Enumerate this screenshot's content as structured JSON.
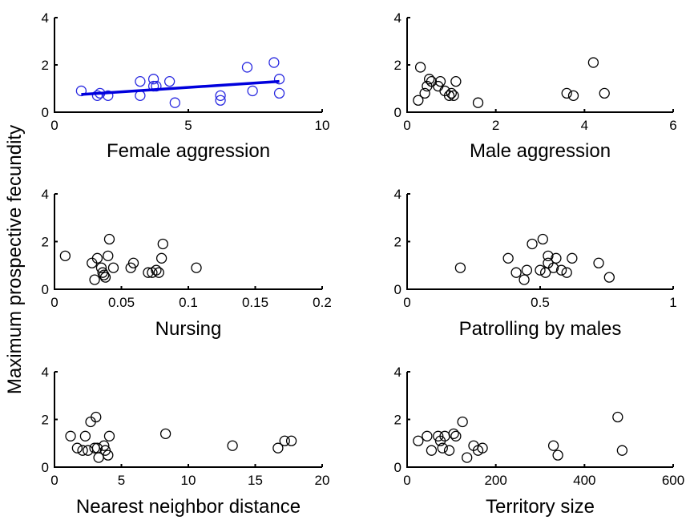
{
  "ylabel": "Maximum prospective fecundity",
  "colors": {
    "trend": "#0000dd",
    "trend_points": "#2a2ae0",
    "points": "#000000"
  },
  "chart_data": [
    {
      "type": "scatter",
      "xlabel": "Female aggression",
      "xlim": [
        0,
        10
      ],
      "ylim": [
        0,
        4
      ],
      "xticks": [
        "0",
        "5",
        "10"
      ],
      "yticks": [
        "0",
        "2",
        "4"
      ],
      "x": [
        1.0,
        1.6,
        1.7,
        2.0,
        3.2,
        3.2,
        3.7,
        3.7,
        3.8,
        4.3,
        4.5,
        6.2,
        6.2,
        7.2,
        7.4,
        8.2,
        8.4,
        8.4
      ],
      "y": [
        0.9,
        0.7,
        0.8,
        0.7,
        0.7,
        1.3,
        1.1,
        1.4,
        1.1,
        1.3,
        0.4,
        0.7,
        0.5,
        1.9,
        0.9,
        2.1,
        1.4,
        0.8
      ],
      "trendline": {
        "x": [
          1.0,
          8.4
        ],
        "y": [
          0.75,
          1.3
        ]
      }
    },
    {
      "type": "scatter",
      "xlabel": "Male aggression",
      "xlim": [
        0,
        6
      ],
      "ylim": [
        0,
        4
      ],
      "xticks": [
        "0",
        "2",
        "4",
        "6"
      ],
      "yticks": [
        "0",
        "2",
        "4"
      ],
      "x": [
        0.25,
        0.3,
        0.4,
        0.45,
        0.5,
        0.55,
        0.7,
        0.75,
        0.85,
        0.95,
        1.0,
        1.05,
        1.1,
        1.6,
        3.6,
        3.75,
        4.2,
        4.45
      ],
      "y": [
        0.5,
        1.9,
        0.8,
        1.1,
        1.4,
        1.3,
        1.1,
        1.3,
        0.9,
        0.7,
        0.8,
        0.7,
        1.3,
        0.4,
        0.8,
        0.7,
        2.1,
        0.8
      ]
    },
    {
      "type": "scatter",
      "xlabel": "Nursing",
      "xlim": [
        0,
        0.2
      ],
      "ylim": [
        0,
        4
      ],
      "xticks": [
        "0",
        "0.05",
        "0.1",
        "0.15",
        "0.2"
      ],
      "yticks": [
        "0",
        "2",
        "4"
      ],
      "x": [
        0.008,
        0.028,
        0.03,
        0.032,
        0.035,
        0.036,
        0.037,
        0.038,
        0.04,
        0.041,
        0.044,
        0.057,
        0.059,
        0.07,
        0.073,
        0.076,
        0.078,
        0.08,
        0.081,
        0.106
      ],
      "y": [
        1.4,
        1.1,
        0.4,
        1.3,
        0.9,
        0.7,
        0.6,
        0.5,
        1.4,
        2.1,
        0.9,
        0.9,
        1.1,
        0.7,
        0.7,
        0.8,
        0.7,
        1.3,
        1.9,
        0.9
      ]
    },
    {
      "type": "scatter",
      "xlabel": "Patrolling by males",
      "xlim": [
        0,
        1
      ],
      "ylim": [
        0,
        4
      ],
      "xticks": [
        "0",
        "0.5",
        "1"
      ],
      "yticks": [
        "0",
        "2",
        "4"
      ],
      "x": [
        0.2,
        0.38,
        0.41,
        0.44,
        0.45,
        0.47,
        0.5,
        0.51,
        0.52,
        0.53,
        0.53,
        0.55,
        0.56,
        0.58,
        0.6,
        0.62,
        0.72,
        0.76
      ],
      "y": [
        0.9,
        1.3,
        0.7,
        0.4,
        0.8,
        1.9,
        0.8,
        2.1,
        0.7,
        1.1,
        1.4,
        0.9,
        1.3,
        0.8,
        0.7,
        1.3,
        1.1,
        0.5
      ]
    },
    {
      "type": "scatter",
      "xlabel": "Nearest neighbor distance",
      "xlim": [
        0,
        20
      ],
      "ylim": [
        0,
        4
      ],
      "xticks": [
        "0",
        "5",
        "10",
        "15",
        "20"
      ],
      "yticks": [
        "0",
        "2",
        "4"
      ],
      "x": [
        1.2,
        1.7,
        2.1,
        2.3,
        2.5,
        2.7,
        3.1,
        3.2,
        3.3,
        3.7,
        3.8,
        4.0,
        4.1,
        8.3,
        13.3,
        16.7,
        17.2,
        17.7
      ],
      "y": [
        1.3,
        0.8,
        0.7,
        1.3,
        0.7,
        1.9,
        2.1,
        0.8,
        0.4,
        0.9,
        0.7,
        0.5,
        1.3,
        1.4,
        0.9,
        0.8,
        1.1,
        1.1
      ],
      "extra_points": {
        "x": [
          3.0
        ],
        "y": [
          0.8
        ]
      }
    },
    {
      "type": "scatter",
      "xlabel": "Territory size",
      "xlim": [
        0,
        600
      ],
      "ylim": [
        0,
        4
      ],
      "xticks": [
        "0",
        "200",
        "400",
        "600"
      ],
      "yticks": [
        "0",
        "2",
        "4"
      ],
      "x": [
        25,
        45,
        55,
        70,
        75,
        80,
        85,
        95,
        105,
        110,
        125,
        135,
        150,
        160,
        170,
        330,
        340,
        475,
        485
      ],
      "y": [
        1.1,
        1.3,
        0.7,
        1.3,
        1.1,
        0.8,
        1.3,
        0.7,
        1.4,
        1.3,
        1.9,
        0.4,
        0.9,
        0.7,
        0.8,
        0.9,
        0.5,
        2.1,
        0.7
      ]
    }
  ]
}
